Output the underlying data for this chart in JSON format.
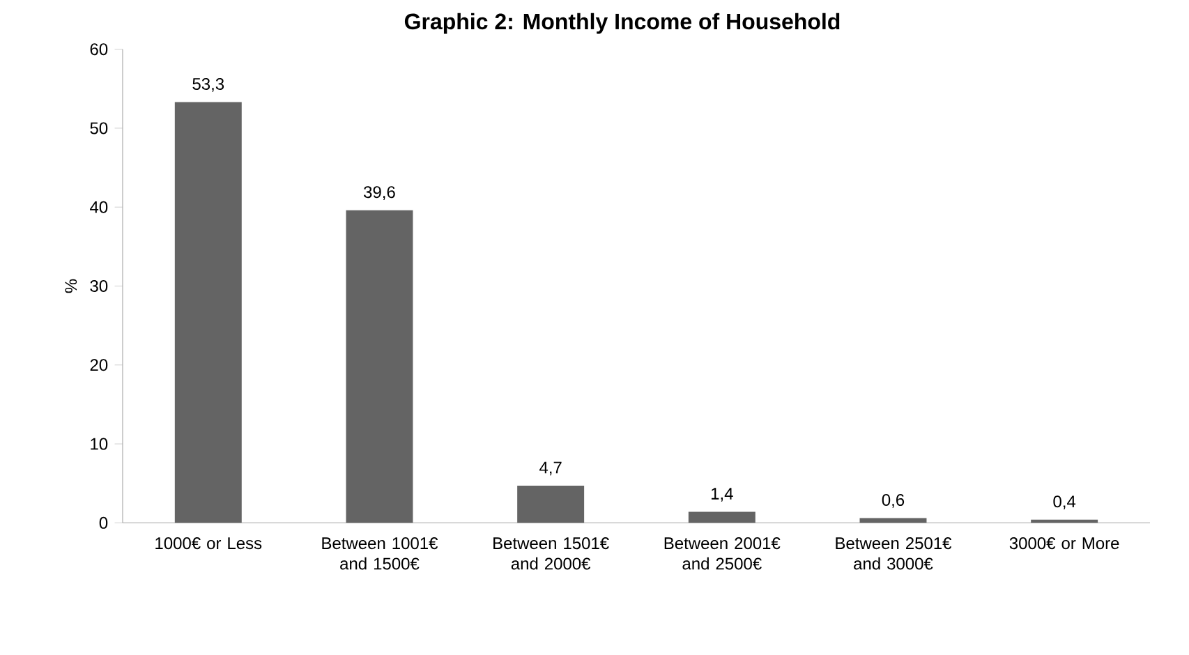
{
  "chart_data": {
    "type": "bar",
    "title": "Graphic 2: Monthly Income of Household",
    "ylabel": "%",
    "categories": [
      "1000€ or Less",
      "Between 1001€ and 1500€",
      "Between 1501€ and 2000€",
      "Between 2001€ and 2500€",
      "Between 2501€ and 3000€",
      "3000€ or More"
    ],
    "values": [
      53.3,
      39.6,
      4.7,
      1.4,
      0.6,
      0.4
    ],
    "value_labels": [
      "53,3",
      "39,6",
      "4,7",
      "1,4",
      "0,6",
      "0,4"
    ],
    "color": "#646464",
    "ylim": [
      0,
      60
    ],
    "yticks": [
      0,
      10,
      20,
      30,
      40,
      50,
      60
    ]
  }
}
